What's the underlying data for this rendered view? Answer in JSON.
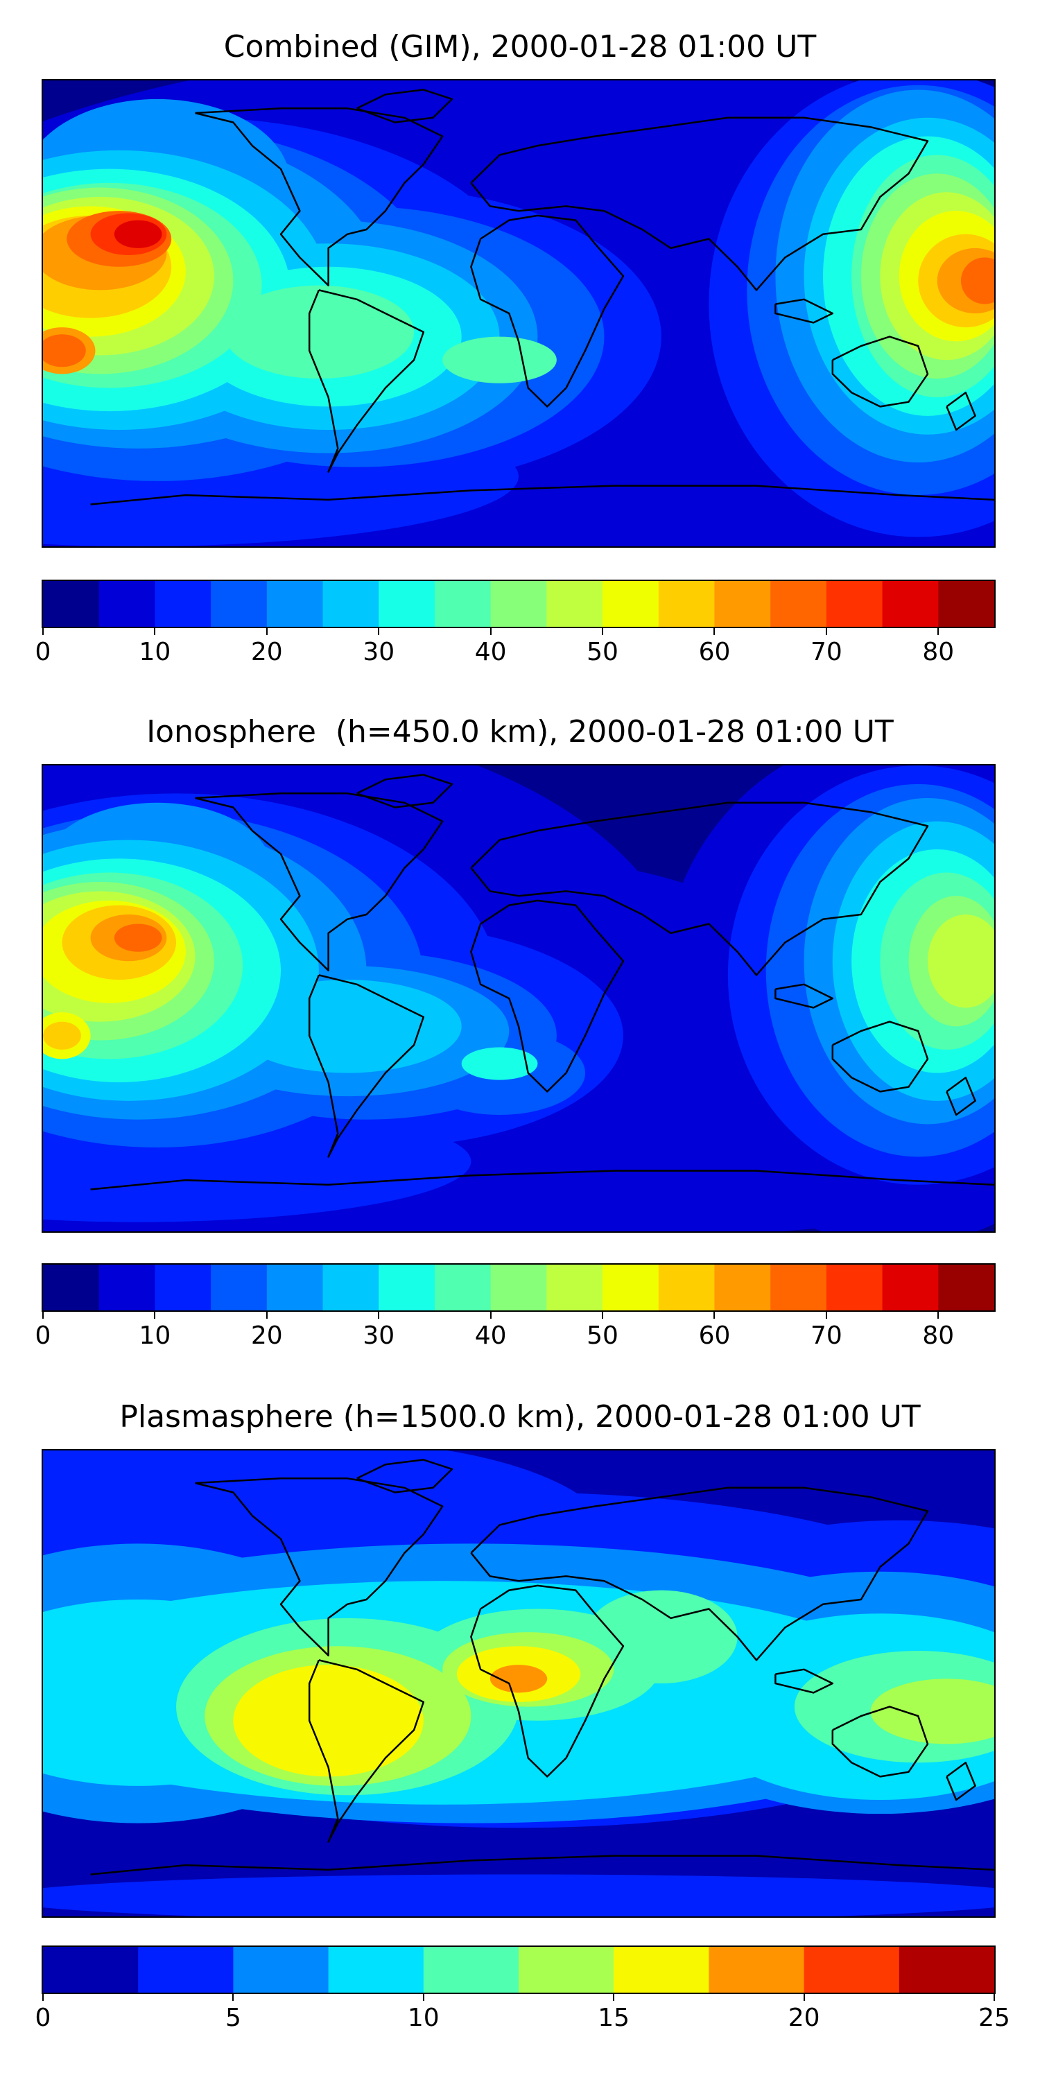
{
  "chart_data": [
    {
      "type": "heatmap",
      "title": "Combined (GIM), 2000-01-28 01:00 UT",
      "colorbar": {
        "levels": [
          0,
          5,
          10,
          15,
          20,
          25,
          30,
          35,
          40,
          45,
          50,
          55,
          60,
          65,
          70,
          75,
          80,
          85
        ],
        "ticks": [
          0,
          10,
          20,
          30,
          40,
          50,
          60,
          70,
          80
        ],
        "colors": [
          "#00008f",
          "#0000d7",
          "#0020ff",
          "#0058ff",
          "#0090ff",
          "#00c8ff",
          "#18ffe8",
          "#50ffaf",
          "#88ff78",
          "#c0ff40",
          "#f0ff00",
          "#ffce00",
          "#ff9a00",
          "#ff6600",
          "#ff3200",
          "#e00000",
          "#990000"
        ]
      },
      "features": [
        {
          "region": "central Pacific north of equator",
          "value": 80
        },
        {
          "region": "central Pacific south of equator",
          "value": 72
        },
        {
          "region": "western Pacific / Indonesia",
          "value": 65
        },
        {
          "region": "South America",
          "value": 40
        },
        {
          "region": "Africa",
          "value": 15
        },
        {
          "region": "polar regions",
          "value": 5
        }
      ]
    },
    {
      "type": "heatmap",
      "title": "Ionosphere  (h=450.0 km), 2000-01-28 01:00 UT",
      "colorbar": {
        "levels": [
          0,
          5,
          10,
          15,
          20,
          25,
          30,
          35,
          40,
          45,
          50,
          55,
          60,
          65,
          70,
          75,
          80,
          85
        ],
        "ticks": [
          0,
          10,
          20,
          30,
          40,
          50,
          60,
          70,
          80
        ],
        "colors": [
          "#00008f",
          "#0000d7",
          "#0020ff",
          "#0058ff",
          "#0090ff",
          "#00c8ff",
          "#18ffe8",
          "#50ffaf",
          "#88ff78",
          "#c0ff40",
          "#f0ff00",
          "#ffce00",
          "#ff9a00",
          "#ff6600",
          "#ff3200",
          "#e00000",
          "#990000"
        ]
      },
      "features": [
        {
          "region": "central Pacific north of equator",
          "value": 70
        },
        {
          "region": "central Pacific south of equator",
          "value": 60
        },
        {
          "region": "western Pacific / Indonesia",
          "value": 50
        },
        {
          "region": "South America",
          "value": 25
        },
        {
          "region": "Africa",
          "value": 5
        },
        {
          "region": "polar regions",
          "value": 5
        }
      ]
    },
    {
      "type": "heatmap",
      "title": "Plasmasphere (h=1500.0 km), 2000-01-28 01:00 UT",
      "colorbar": {
        "levels": [
          0,
          2.5,
          5,
          7.5,
          10,
          12.5,
          15,
          17.5,
          20,
          22.5,
          25
        ],
        "ticks": [
          0,
          5,
          10,
          15,
          20,
          25
        ],
        "colors": [
          "#0000b0",
          "#0020ff",
          "#0088ff",
          "#00e0ff",
          "#50ffaf",
          "#a8ff50",
          "#f8f800",
          "#ff9400",
          "#ff3a00",
          "#b00000"
        ]
      },
      "features": [
        {
          "region": "South America",
          "value": 16
        },
        {
          "region": "Gulf of Guinea",
          "value": 18
        },
        {
          "region": "western Pacific",
          "value": 13
        },
        {
          "region": "northern mid-latitudes",
          "value": 2
        },
        {
          "region": "southern ocean",
          "value": 2
        }
      ]
    }
  ]
}
